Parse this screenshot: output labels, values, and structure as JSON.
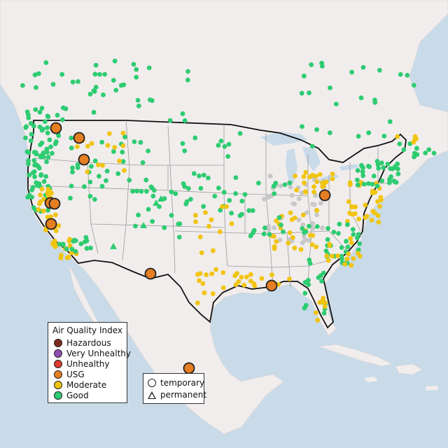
{
  "legend": {
    "title": "Air Quality Index",
    "items": [
      {
        "label": "Hazardous",
        "color": "#7e2a1e"
      },
      {
        "label": "Very Unhealthy",
        "color": "#8f4fb0"
      },
      {
        "label": "Unhealthy",
        "color": "#e03a2e"
      },
      {
        "label": "USG",
        "color": "#e67e22"
      },
      {
        "label": "Moderate",
        "color": "#f1c40f"
      },
      {
        "label": "Good",
        "color": "#2ecc71"
      }
    ]
  },
  "shape_legend": {
    "items": [
      {
        "label": "temporary",
        "shape": "circle"
      },
      {
        "label": "permanent",
        "shape": "triangle"
      }
    ]
  },
  "colors": {
    "water": "#c9dbe9",
    "land": "#f2eeee",
    "us_land": "#efebe9",
    "state_lines": "#9a9a9a",
    "border": "#111111",
    "no_data": "#c8c8c8"
  }
}
